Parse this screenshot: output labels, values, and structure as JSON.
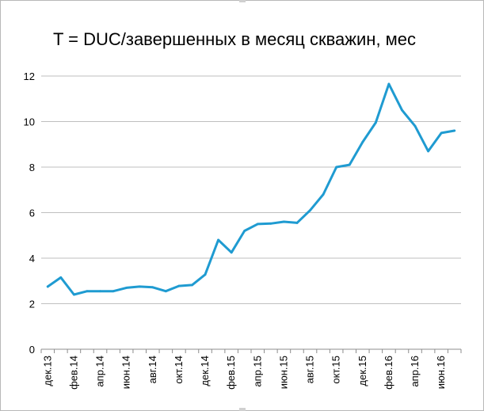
{
  "chart_data": {
    "type": "line",
    "title": "T = DUC/завершенных в месяц скважин, мес",
    "xlabel": "",
    "ylabel": "",
    "ylim": [
      0,
      12
    ],
    "yticks": [
      0,
      2,
      4,
      6,
      8,
      10,
      12
    ],
    "grid": "horizontal",
    "legend": "none",
    "color": "#1f9bd1",
    "categories": [
      "дек.13",
      "янв.14",
      "фев.14",
      "мар.14",
      "апр.14",
      "май.14",
      "июн.14",
      "июл.14",
      "авг.14",
      "сен.14",
      "окт.14",
      "ноя.14",
      "дек.14",
      "янв.15",
      "фев.15",
      "мар.15",
      "апр.15",
      "май.15",
      "июн.15",
      "июл.15",
      "авг.15",
      "сен.15",
      "окт.15",
      "ноя.15",
      "дек.15",
      "янв.16",
      "фев.16",
      "мар.16",
      "апр.16",
      "май.16",
      "июн.16",
      "июл.16"
    ],
    "tick_labels": [
      "дек.13",
      "фев.14",
      "апр.14",
      "июн.14",
      "авг.14",
      "окт.14",
      "дек.14",
      "фев.15",
      "апр.15",
      "июн.15",
      "авг.15",
      "окт.15",
      "дек.15",
      "фев.16",
      "апр.16",
      "июн.16"
    ],
    "values": [
      2.75,
      3.15,
      2.4,
      2.55,
      2.55,
      2.55,
      2.7,
      2.75,
      2.72,
      2.55,
      2.78,
      2.82,
      3.28,
      4.8,
      4.25,
      5.2,
      5.5,
      5.52,
      5.6,
      5.55,
      6.1,
      6.8,
      8.0,
      8.1,
      9.1,
      9.95,
      11.65,
      10.5,
      9.8,
      8.7,
      9.5,
      9.6
    ]
  }
}
